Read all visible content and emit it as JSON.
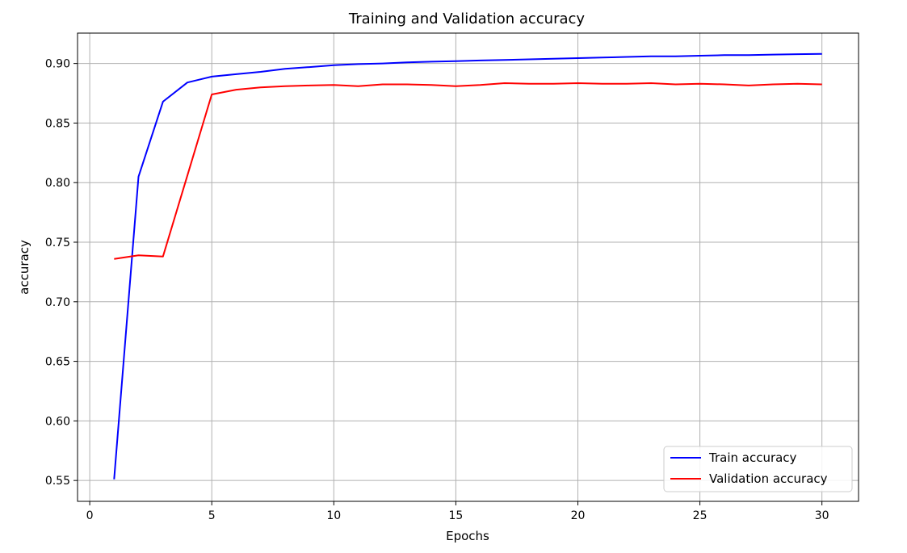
{
  "chart_data": {
    "type": "line",
    "title": "Training and Validation accuracy",
    "xlabel": "Epochs",
    "ylabel": "accuracy",
    "xlim": [
      -0.5,
      31.5
    ],
    "ylim": [
      0.5325,
      0.9255
    ],
    "xticks": [
      0,
      5,
      10,
      15,
      20,
      25,
      30
    ],
    "yticks": [
      0.55,
      0.6,
      0.65,
      0.7,
      0.75,
      0.8,
      0.85,
      0.9
    ],
    "ytick_labels": [
      "0.55",
      "0.60",
      "0.65",
      "0.70",
      "0.75",
      "0.80",
      "0.85",
      "0.90"
    ],
    "grid": true,
    "legend_position": "lower-right",
    "x": [
      1,
      2,
      3,
      4,
      5,
      6,
      7,
      8,
      9,
      10,
      11,
      12,
      13,
      14,
      15,
      16,
      17,
      18,
      19,
      20,
      21,
      22,
      23,
      24,
      25,
      26,
      27,
      28,
      29,
      30
    ],
    "series": [
      {
        "name": "Train accuracy",
        "color": "#0000ff",
        "values": [
          0.551,
          0.805,
          0.868,
          0.884,
          0.889,
          0.891,
          0.893,
          0.8955,
          0.897,
          0.8985,
          0.8995,
          0.9,
          0.901,
          0.9015,
          0.902,
          0.9025,
          0.903,
          0.9035,
          0.904,
          0.9045,
          0.905,
          0.9055,
          0.906,
          0.906,
          0.9065,
          0.907,
          0.907,
          0.9075,
          0.9078,
          0.908
        ]
      },
      {
        "name": "Validation accuracy",
        "color": "#ff0000",
        "values": [
          0.736,
          0.739,
          0.738,
          0.806,
          0.874,
          0.878,
          0.88,
          0.881,
          0.8815,
          0.882,
          0.881,
          0.8825,
          0.8825,
          0.882,
          0.881,
          0.882,
          0.8835,
          0.883,
          0.883,
          0.8835,
          0.883,
          0.883,
          0.8835,
          0.8825,
          0.883,
          0.8825,
          0.8815,
          0.8825,
          0.883,
          0.8825
        ]
      }
    ]
  }
}
